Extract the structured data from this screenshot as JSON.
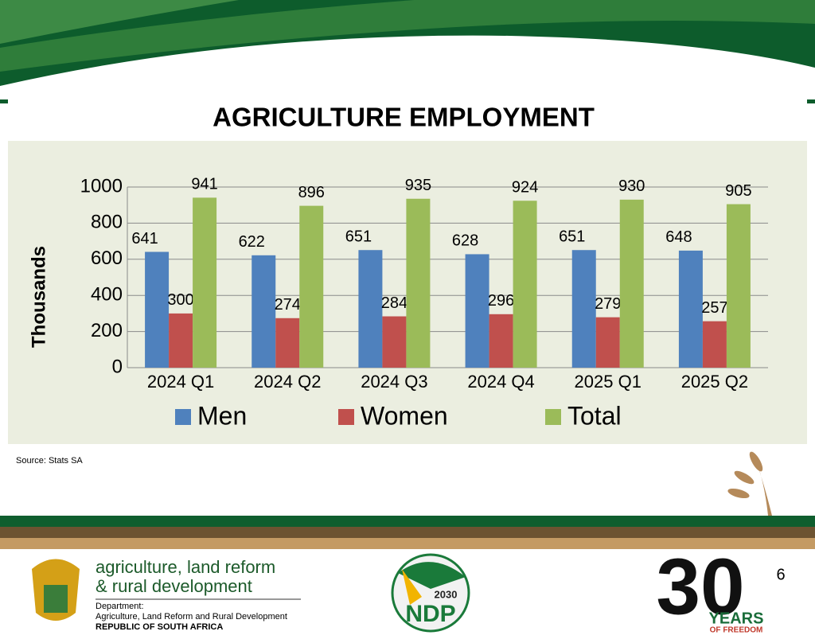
{
  "chart_data": {
    "type": "bar",
    "title": "AGRICULTURE  EMPLOYMENT",
    "y_label": "Thousands",
    "categories": [
      "2024 Q1",
      "2024 Q2",
      "2024 Q3",
      "2024 Q4",
      "2025 Q1",
      "2025 Q2"
    ],
    "series": [
      {
        "name": "Men",
        "color": "#4f81bd",
        "values": [
          641,
          622,
          651,
          628,
          651,
          648
        ]
      },
      {
        "name": "Women",
        "color": "#c0504d",
        "values": [
          300,
          274,
          284,
          296,
          279,
          257
        ]
      },
      {
        "name": "Total",
        "color": "#9bbb59",
        "values": [
          941,
          896,
          935,
          924,
          930,
          905
        ]
      }
    ],
    "ylim": [
      0,
      1000
    ],
    "yticks": [
      0,
      200,
      400,
      600,
      800,
      1000
    ],
    "grid": true,
    "legend": "bottom"
  },
  "source": "Source: Stats SA",
  "page_number": "6",
  "footer": {
    "dept_line1": "agriculture, land reform",
    "dept_line2": "& rural development",
    "dept_label": "Department:",
    "dept_name": "Agriculture, Land Reform and Rural Development",
    "country": "REPUBLIC OF SOUTH AFRICA",
    "ndp_year": "2030",
    "ndp": "NDP",
    "thirty": "30",
    "years": "YEARS",
    "freedom": "OF FREEDOM"
  }
}
